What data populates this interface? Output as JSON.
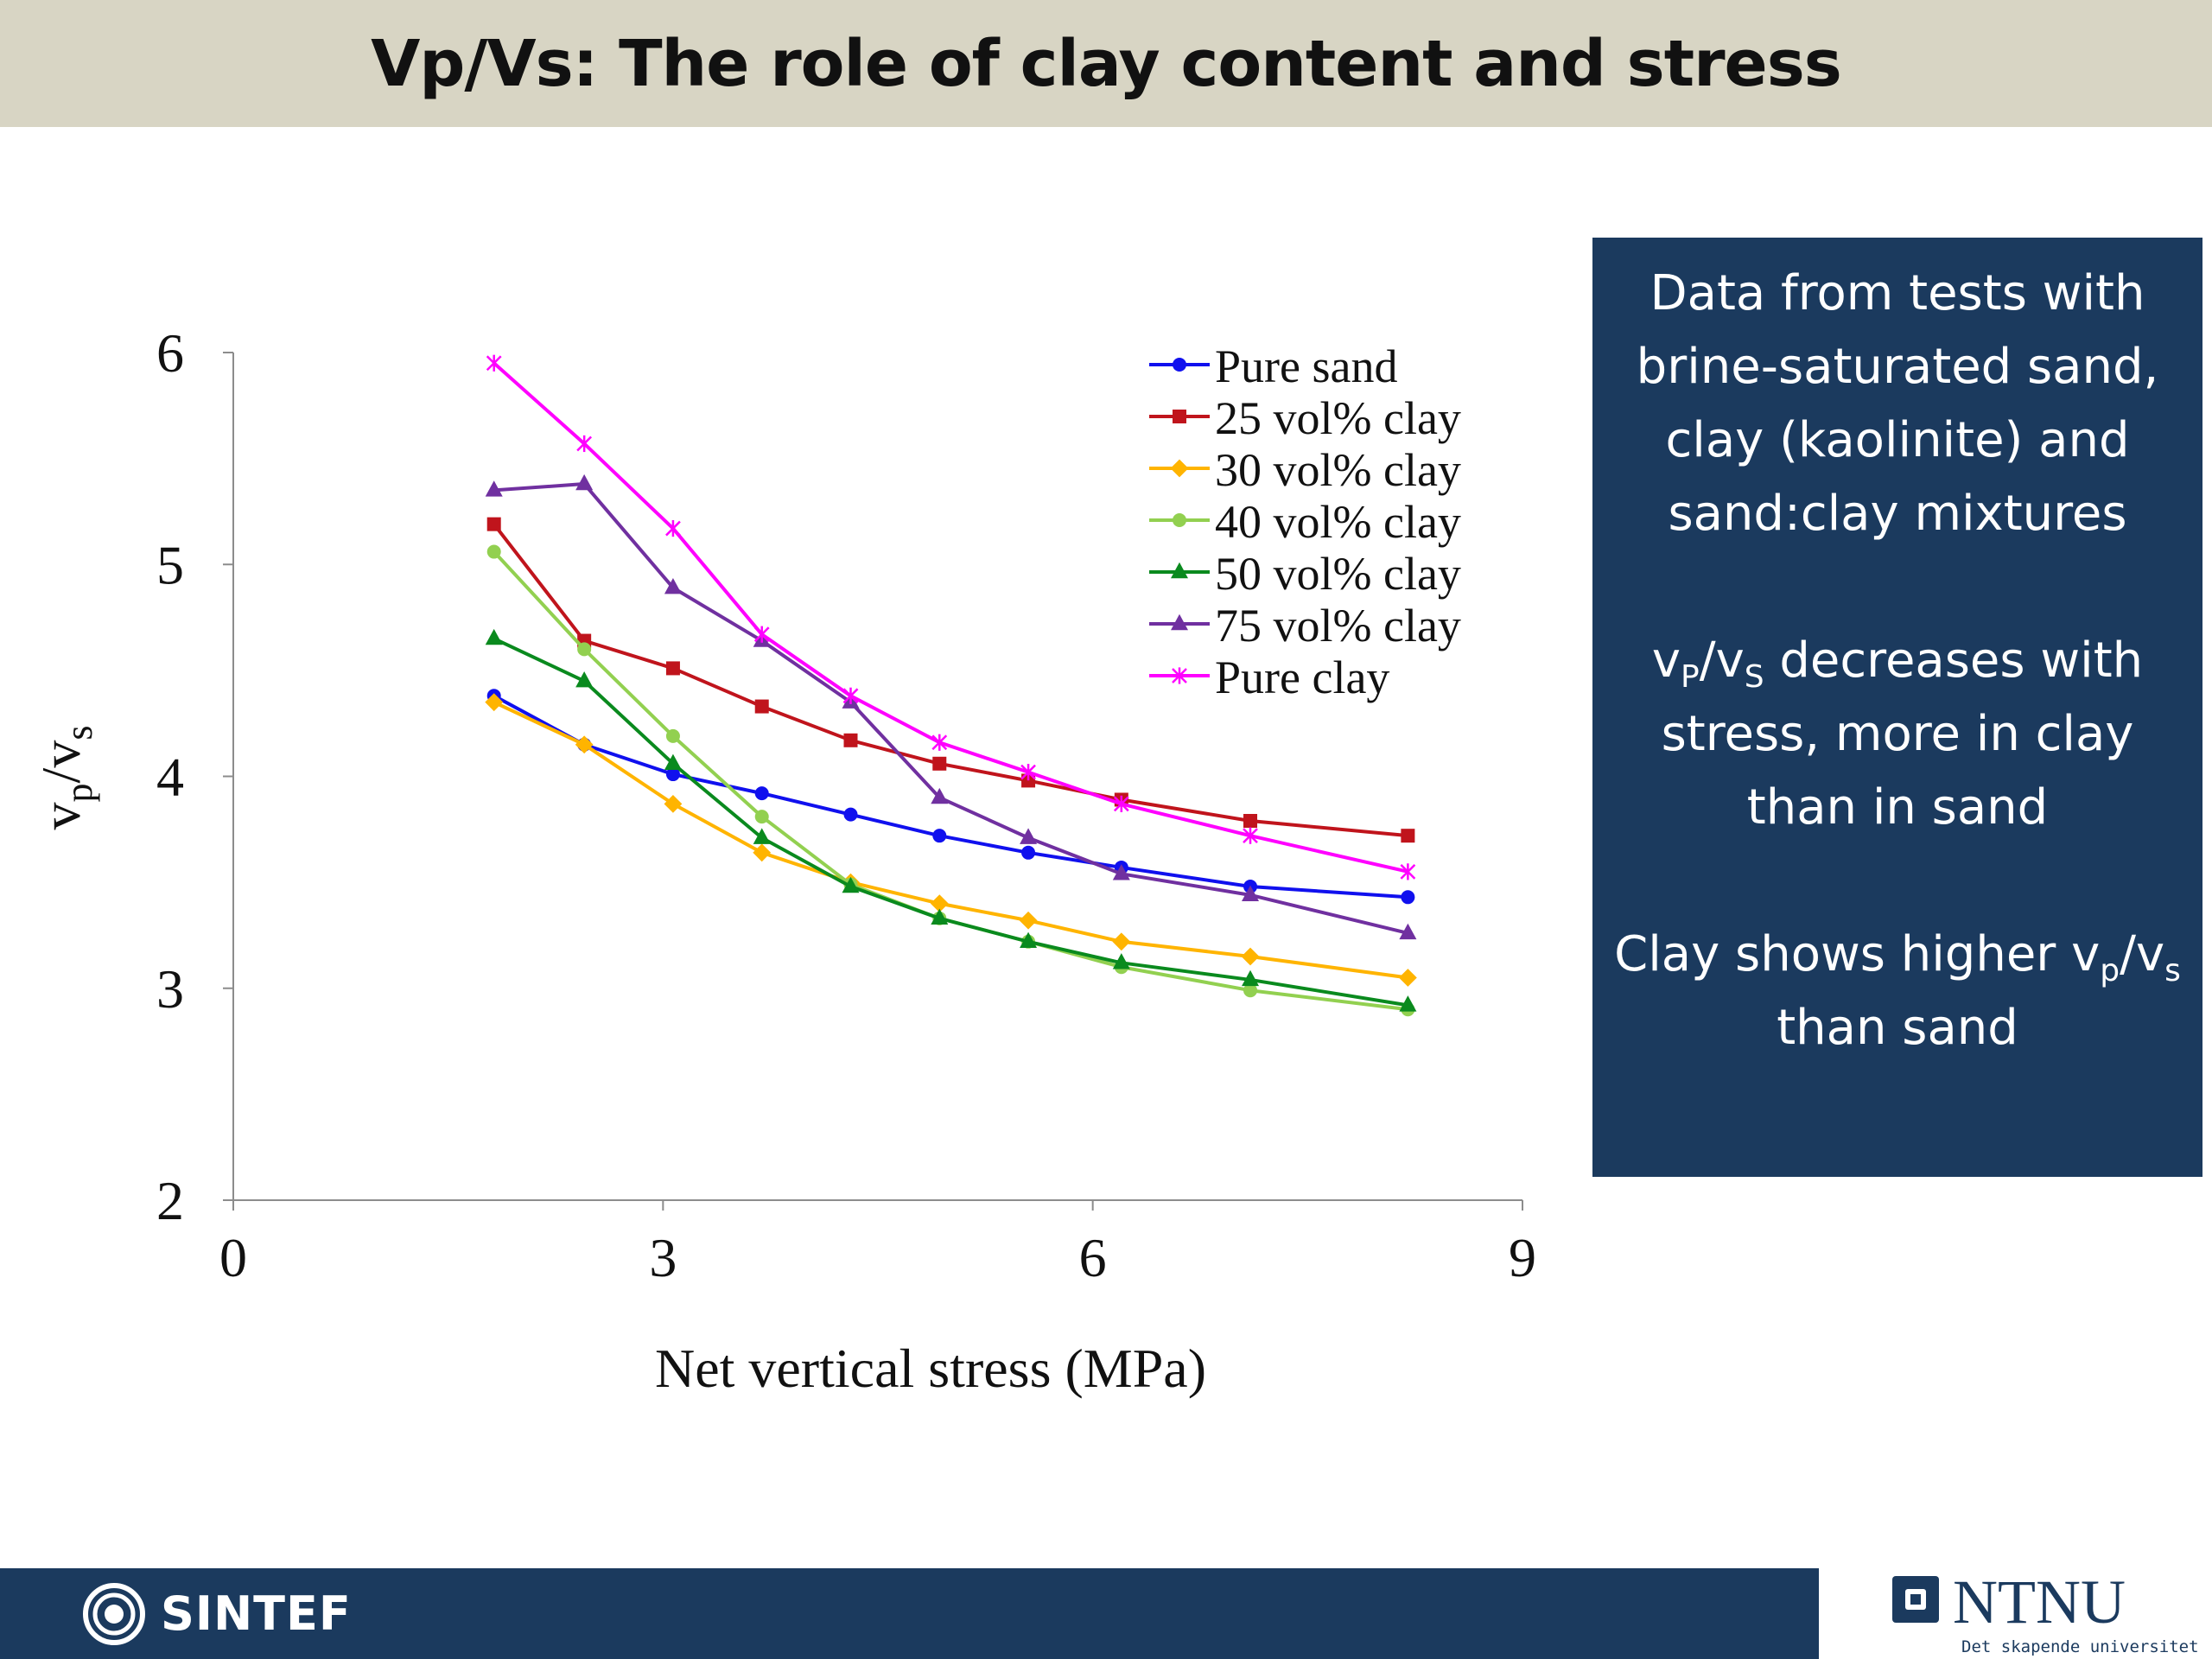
{
  "header": {
    "title": "Vp/Vs: The role of clay content and stress"
  },
  "info_box": {
    "paragraphs": [
      [
        {
          "t": "Data from tests with brine-saturated sand, clay (kaolinite) and sand:clay mixtures"
        }
      ],
      [
        {
          "t": "v"
        },
        {
          "sub": "P"
        },
        {
          "t": "/v"
        },
        {
          "sub": "S"
        },
        {
          "t": " decreases with stress, more in clay than in sand"
        }
      ],
      [
        {
          "t": "Clay shows higher v"
        },
        {
          "sub": "p"
        },
        {
          "t": "/v"
        },
        {
          "sub": "s"
        },
        {
          "t": " than sand"
        }
      ]
    ]
  },
  "footer": {
    "sintef_label": "SINTEF",
    "ntnu_label": "NTNU",
    "ntnu_tagline": "Det skapende universitet"
  },
  "chart_data": {
    "type": "line",
    "xlabel": "Net vertical stress (MPa)",
    "ylabel_main": "v",
    "ylabel_sub1": "p",
    "ylabel_mid": "/v",
    "ylabel_sub2": "s",
    "xlim": [
      0,
      9
    ],
    "ylim": [
      2,
      6
    ],
    "xticks": [
      0,
      3,
      6,
      9
    ],
    "yticks": [
      2,
      3,
      4,
      5,
      6
    ],
    "grid": false,
    "legend_position": "top-right",
    "x": [
      1.82,
      2.45,
      3.07,
      3.69,
      4.31,
      4.93,
      5.55,
      6.2,
      7.1,
      8.2
    ],
    "series": [
      {
        "name": "Pure sand",
        "color": "#1010ee",
        "marker": "circle",
        "values": [
          4.38,
          4.15,
          4.01,
          3.92,
          3.82,
          3.72,
          3.64,
          3.57,
          3.48,
          3.43
        ]
      },
      {
        "name": "25 vol% clay",
        "color": "#c0141c",
        "marker": "square",
        "values": [
          5.19,
          4.64,
          4.51,
          4.33,
          4.17,
          4.06,
          3.98,
          3.89,
          3.79,
          3.72
        ]
      },
      {
        "name": "30 vol% clay",
        "color": "#ffb400",
        "marker": "diamond",
        "values": [
          4.35,
          4.15,
          3.87,
          3.64,
          3.5,
          3.4,
          3.32,
          3.22,
          3.15,
          3.05
        ]
      },
      {
        "name": "40 vol% clay",
        "color": "#92d050",
        "marker": "circle",
        "values": [
          5.06,
          4.6,
          4.19,
          3.81,
          3.49,
          3.33,
          3.22,
          3.1,
          2.99,
          2.9
        ]
      },
      {
        "name": "50 vol% clay",
        "color": "#0a8a1e",
        "marker": "triangle",
        "values": [
          4.65,
          4.45,
          4.06,
          3.71,
          3.48,
          3.33,
          3.22,
          3.12,
          3.04,
          2.92
        ]
      },
      {
        "name": "75 vol% clay",
        "color": "#7030a0",
        "marker": "triangle",
        "values": [
          5.35,
          5.38,
          4.89,
          4.64,
          4.35,
          3.9,
          3.71,
          3.54,
          3.44,
          3.26
        ]
      },
      {
        "name": "Pure clay",
        "color": "#ff00ff",
        "marker": "star",
        "values": [
          5.95,
          5.57,
          5.17,
          4.67,
          4.38,
          4.16,
          4.02,
          3.87,
          3.72,
          3.55
        ]
      }
    ]
  }
}
